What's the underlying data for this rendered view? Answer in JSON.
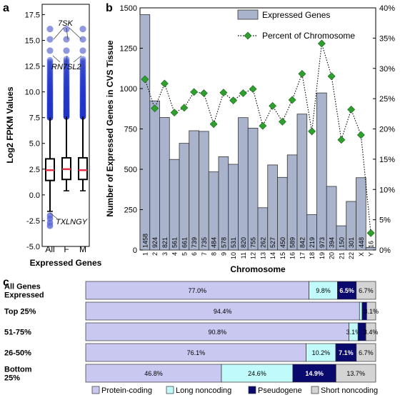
{
  "panels": {
    "a": "a",
    "b": "b",
    "c": "c"
  },
  "colors": {
    "bar": "#a9b3cc",
    "barStroke": "#333333",
    "marker": "#2ea02e",
    "proteinCoding": "#c8c8f0",
    "longNoncoding": "#c0fafa",
    "pseudogene": "#0a0a6e",
    "shortNoncoding": "#d4d4d4",
    "boxPoint": "#1f35c8",
    "median": "#e8304a"
  },
  "chart_data": [
    {
      "id": "a",
      "type": "box",
      "ylabel": "Log2 FPKM Values",
      "xlabel": "Expressed Genes",
      "categories": [
        "All",
        "F",
        "M"
      ],
      "ylim": [
        -5.0,
        18.5
      ],
      "yticks": [
        "-5.0",
        "-2.5",
        "0.0",
        "2.5",
        "5.0",
        "7.5",
        "10.0",
        "12.5",
        "15.0",
        "17.5"
      ],
      "boxes": [
        {
          "category": "All",
          "median": 2.4,
          "q1": 1.4,
          "q3": 3.5,
          "whisker_low": -1.6,
          "whisker_high": 7.5,
          "outliers": [
            8,
            9,
            10,
            11,
            12,
            13,
            14,
            15.1,
            16.1,
            -2.0,
            -2.3,
            -2.7,
            -3.0
          ]
        },
        {
          "category": "F",
          "median": 2.5,
          "q1": 1.5,
          "q3": 3.6,
          "whisker_low": 0.4,
          "whisker_high": 7.6,
          "outliers": [
            8,
            9,
            10,
            11,
            12,
            13,
            14,
            15.1,
            16.1
          ]
        },
        {
          "category": "M",
          "median": 2.4,
          "q1": 1.5,
          "q3": 3.6,
          "whisker_low": 0.4,
          "whisker_high": 7.6,
          "outliers": [
            8,
            9,
            10,
            11,
            12,
            13,
            14,
            15.1,
            16.1
          ]
        }
      ],
      "annotations": [
        "7SK",
        "RN7SL2",
        "TXLNGY"
      ]
    },
    {
      "id": "b",
      "type": "bar",
      "ylabel": "Number of Expressed Genes in CVS Tissue",
      "xlabel": "Chromosome",
      "categories": [
        "1",
        "2",
        "3",
        "4",
        "5",
        "6",
        "7",
        "8",
        "9",
        "10",
        "11",
        "12",
        "13",
        "14",
        "15",
        "16",
        "17",
        "18",
        "19",
        "20",
        "21",
        "22",
        "X",
        "Y"
      ],
      "series": [
        {
          "name": "Expressed Genes",
          "values": [
            1458,
            924,
            821,
            561,
            661,
            739,
            735,
            484,
            578,
            531,
            820,
            755,
            262,
            527,
            450,
            589,
            842,
            219,
            973,
            394,
            150,
            301,
            448,
            16
          ]
        },
        {
          "name": "Percent of Chromosome",
          "axis": "right",
          "values": [
            28.2,
            23.4,
            27.5,
            22.7,
            23.5,
            26.1,
            25.9,
            20.8,
            26.0,
            24.7,
            25.9,
            26.6,
            20.5,
            23.8,
            21.2,
            24.8,
            29.1,
            19.6,
            34.1,
            28.7,
            18.2,
            23.2,
            19.0,
            2.8
          ]
        }
      ],
      "ylim": [
        0,
        1500
      ],
      "yticks": [
        "0",
        "250",
        "500",
        "750",
        "1000",
        "1250",
        "1500"
      ],
      "y2lim": [
        0,
        40
      ],
      "y2ticks": [
        "0%",
        "5%",
        "10%",
        "15%",
        "20%",
        "25%",
        "30%",
        "35%",
        "40%"
      ],
      "legend": "top-center"
    },
    {
      "id": "c",
      "type": "stacked-bar-horizontal",
      "categories": [
        "All Genes Expressed",
        "Top 25%",
        "51-75%",
        "26-50%",
        "Bottom 25%"
      ],
      "category_lines": [
        [
          "All Genes",
          "Expressed"
        ],
        [
          "Top 25%"
        ],
        [
          "51-75%"
        ],
        [
          "26-50%"
        ],
        [
          "Bottom",
          "25%"
        ]
      ],
      "series": [
        {
          "name": "Protein-coding",
          "values": [
            77.0,
            94.4,
            90.8,
            76.1,
            46.8
          ],
          "labels": [
            "77.0%",
            "94.4%",
            "90.8%",
            "76.1%",
            "46.8%"
          ]
        },
        {
          "name": "Long noncoding",
          "values": [
            9.8,
            0.9,
            3.1,
            10.2,
            24.6
          ],
          "labels": [
            "9.8%",
            "",
            "3.1%",
            "10.2%",
            "24.6%"
          ]
        },
        {
          "name": "Pseudogene",
          "values": [
            6.5,
            1.6,
            2.7,
            7.1,
            14.9
          ],
          "labels": [
            "6.5%",
            "",
            "",
            "7.1%",
            "14.9%"
          ]
        },
        {
          "name": "Short noncoding",
          "values": [
            6.7,
            3.1,
            3.4,
            6.7,
            13.7
          ],
          "labels": [
            "6.7%",
            "3.1%",
            "3.4%",
            "6.7%",
            "13.7%"
          ]
        }
      ],
      "legend": "bottom"
    }
  ]
}
